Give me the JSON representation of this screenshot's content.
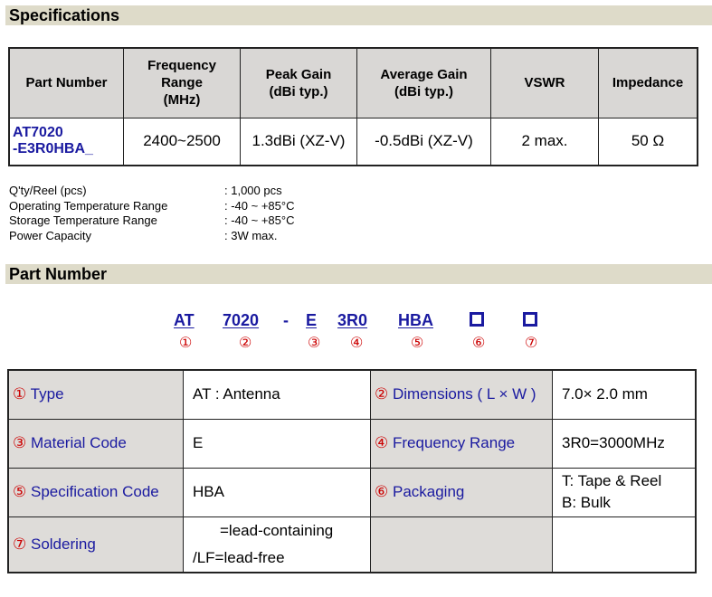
{
  "sections": {
    "specifications": "Specifications",
    "part_number": "Part Number"
  },
  "spec_table": {
    "headers": {
      "part_number": "Part Number",
      "frequency_range": [
        "Frequency",
        "Range",
        "(MHz)"
      ],
      "peak_gain": [
        "Peak Gain",
        "(dBi typ.)"
      ],
      "average_gain": [
        "Average Gain",
        "(dBi typ.)"
      ],
      "vswr": "VSWR",
      "impedance": "Impedance"
    },
    "row": {
      "part_number": [
        "AT7020",
        "-E3R0HBA_"
      ],
      "frequency_range": "2400~2500",
      "peak_gain": "1.3dBi (XZ-V)",
      "average_gain": "-0.5dBi (XZ-V)",
      "vswr": "2 max.",
      "impedance": "50 Ω"
    }
  },
  "info": [
    {
      "label": "Q'ty/Reel (pcs)",
      "value": ": 1,000 pcs"
    },
    {
      "label": "Operating Temperature Range",
      "value": ": -40 ~ +85°C"
    },
    {
      "label": "Storage Temperature Range",
      "value": ": -40 ~ +85°C"
    },
    {
      "label": "Power Capacity",
      "value": ": 3W max."
    }
  ],
  "code_parts": [
    "AT",
    "7020",
    "-",
    "E",
    "3R0",
    "HBA"
  ],
  "code_numbers": [
    "①",
    "②",
    "③",
    "④",
    "⑤",
    "⑥",
    "⑦"
  ],
  "pn_table": {
    "type": {
      "num": "①",
      "label": "Type",
      "value": "AT : Antenna"
    },
    "dimensions": {
      "num": "②",
      "label": "Dimensions ( L × W )",
      "value": "7.0× 2.0 mm"
    },
    "material": {
      "num": "③",
      "label": "Material Code",
      "value": "E"
    },
    "frequency": {
      "num": "④",
      "label": "Frequency Range",
      "value": "3R0=3000MHz"
    },
    "specification": {
      "num": "⑤",
      "label": "Specification Code",
      "value": "HBA"
    },
    "packaging": {
      "num": "⑥",
      "label": "Packaging",
      "value": [
        "T: Tape & Reel",
        "B: Bulk"
      ]
    },
    "soldering": {
      "num": "⑦",
      "label": "Soldering",
      "value": [
        "=lead-containing",
        "/LF=lead-free"
      ]
    }
  }
}
